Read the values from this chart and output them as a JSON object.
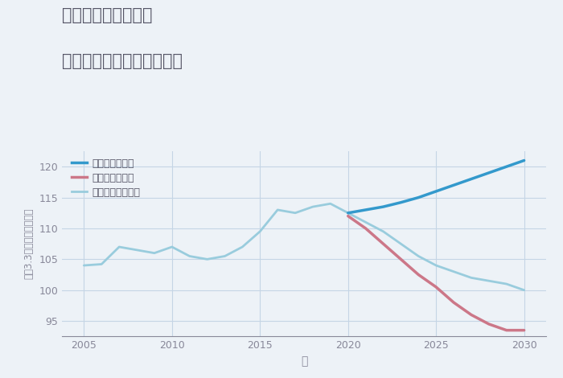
{
  "title_line1": "岐阜県関市大平台の",
  "title_line2": "中古マンションの価格推移",
  "xlabel": "年",
  "ylabel": "坪（3.3㎡）単価（万円）",
  "background_color": "#edf2f7",
  "plot_background": "#edf2f7",
  "ylim": [
    92.5,
    122.5
  ],
  "yticks": [
    95,
    100,
    105,
    110,
    115,
    120
  ],
  "xticks": [
    2005,
    2010,
    2015,
    2020,
    2025,
    2030
  ],
  "good_scenario": {
    "label": "グッドシナリオ",
    "color": "#3399cc",
    "linewidth": 2.5,
    "x": [
      2020,
      2021,
      2022,
      2023,
      2024,
      2025,
      2026,
      2027,
      2028,
      2029,
      2030
    ],
    "y": [
      112.5,
      113.0,
      113.5,
      114.2,
      115.0,
      116.0,
      117.0,
      118.0,
      119.0,
      120.0,
      121.0
    ]
  },
  "bad_scenario": {
    "label": "バッドシナリオ",
    "color": "#cc7788",
    "linewidth": 2.5,
    "x": [
      2020,
      2021,
      2022,
      2023,
      2024,
      2025,
      2026,
      2027,
      2028,
      2029,
      2030
    ],
    "y": [
      112.0,
      110.0,
      107.5,
      105.0,
      102.5,
      100.5,
      98.0,
      96.0,
      94.5,
      93.5,
      93.5
    ]
  },
  "normal_scenario": {
    "label": "ノーマルシナリオ",
    "color": "#99ccdd",
    "linewidth": 2.0,
    "x": [
      2005,
      2006,
      2007,
      2008,
      2009,
      2010,
      2011,
      2012,
      2013,
      2014,
      2015,
      2016,
      2017,
      2018,
      2019,
      2020,
      2021,
      2022,
      2023,
      2024,
      2025,
      2026,
      2027,
      2028,
      2029,
      2030
    ],
    "y": [
      104.0,
      104.2,
      107.0,
      106.5,
      106.0,
      107.0,
      105.5,
      105.0,
      105.5,
      107.0,
      109.5,
      113.0,
      112.5,
      113.5,
      114.0,
      112.5,
      111.0,
      109.5,
      107.5,
      105.5,
      104.0,
      103.0,
      102.0,
      101.5,
      101.0,
      100.0
    ]
  },
  "grid_color": "#c5d5e5",
  "title_color": "#555566",
  "axis_color": "#888899",
  "legend_text_color": "#555566"
}
